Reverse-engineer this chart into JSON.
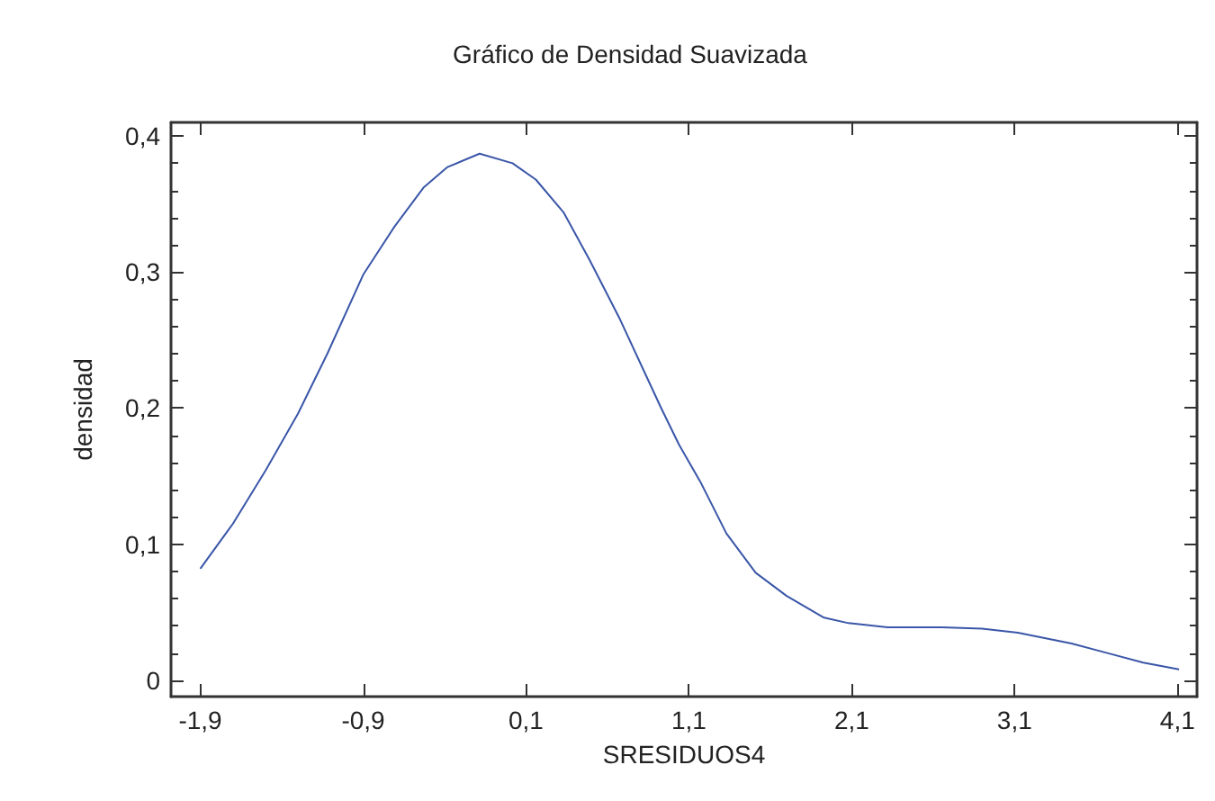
{
  "chart_data": {
    "type": "line",
    "title": "Gráfico de Densidad Suavizada",
    "xlabel": "SRESIDUOS4",
    "ylabel": "densidad",
    "xlim": [
      -2.08,
      4.22
    ],
    "ylim": [
      -0.012,
      0.41
    ],
    "xticks": [
      {
        "value": -1.9,
        "label": "-1,9"
      },
      {
        "value": -0.9,
        "label": "-0,9"
      },
      {
        "value": 0.1,
        "label": "0,1"
      },
      {
        "value": 1.1,
        "label": "1,1"
      },
      {
        "value": 2.1,
        "label": "2,1"
      },
      {
        "value": 3.1,
        "label": "3,1"
      },
      {
        "value": 4.1,
        "label": "4,1"
      }
    ],
    "yticks": [
      0,
      {
        "value": 0.1,
        "label": "0,1"
      },
      {
        "value": 0.2,
        "label": "0,2"
      },
      {
        "value": 0.3,
        "label": "0,3"
      },
      {
        "value": 0.4,
        "label": "0,4"
      }
    ],
    "grid": false,
    "marker": "none",
    "line_style": "solid",
    "series": [
      {
        "color": "#3a56a8",
        "x": [
          -1.9,
          -1.7,
          -1.5,
          -1.3,
          -1.12,
          -0.9,
          -0.71,
          -0.53,
          -0.385,
          -0.185,
          0.017,
          0.16,
          0.33,
          0.49,
          0.67,
          0.86,
          0.93,
          1.04,
          1.17,
          1.33,
          1.51,
          1.7,
          1.93,
          2.08,
          2.32,
          2.65,
          2.9,
          3.12,
          3.45,
          3.67,
          3.89,
          4.11
        ],
        "values": [
          0.082,
          0.115,
          0.154,
          0.196,
          0.24,
          0.298,
          0.333,
          0.362,
          0.377,
          0.387,
          0.38,
          0.368,
          0.344,
          0.309,
          0.267,
          0.218,
          0.2,
          0.173,
          0.146,
          0.108,
          0.079,
          0.062,
          0.046,
          0.042,
          0.039,
          0.039,
          0.038,
          0.035,
          0.027,
          0.02,
          0.013,
          0.008
        ]
      }
    ]
  }
}
